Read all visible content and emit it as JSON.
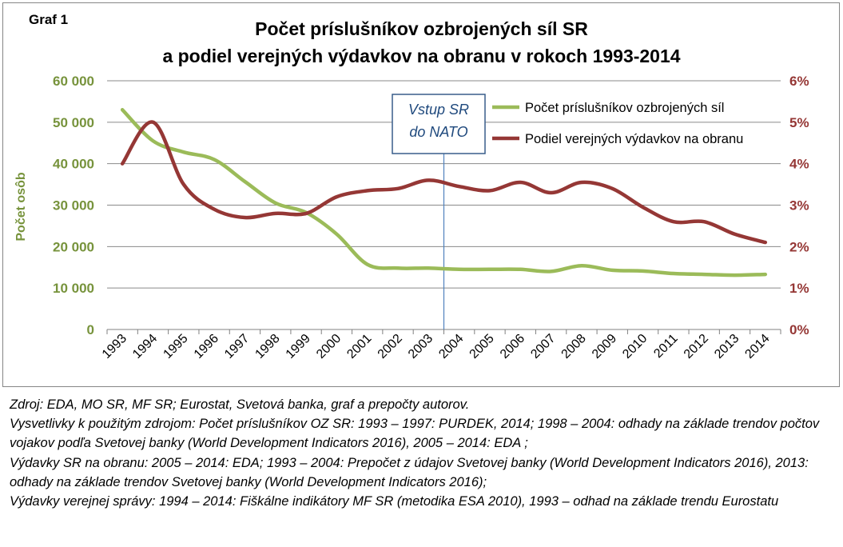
{
  "graph_label": "Graf 1",
  "title_lines": [
    "Počet príslušníkov ozbrojených síl SR",
    "a podiel verejných výdavkov na obranu v rokoch 1993-2014"
  ],
  "annotation": {
    "lines": [
      "Vstup SR",
      "do NATO"
    ],
    "x_year": 2003.5
  },
  "colors": {
    "series_green": "#9BBB59",
    "series_red": "#953735",
    "axis_left_text": "#77933C",
    "axis_right_text": "#953735",
    "annotation_line": "#4F81BD",
    "annotation_border": "#385D8A",
    "annotation_text": "#1F497D",
    "grid": "#8a8a8a"
  },
  "chart_data": {
    "type": "line",
    "title": "Počet príslušníkov ozbrojených síl SR a podiel verejných výdavkov na obranu v rokoch 1993-2014",
    "categories": [
      "1993",
      "1994",
      "1995",
      "1996",
      "1997",
      "1998",
      "1999",
      "2000",
      "2001",
      "2002",
      "2003",
      "2004",
      "2005",
      "2006",
      "2007",
      "2008",
      "2009",
      "2010",
      "2011",
      "2012",
      "2013",
      "2014"
    ],
    "ylabel_left": "Počet osôb",
    "ylabel_right": "",
    "ylim_left": [
      0,
      60000
    ],
    "ylim_right": [
      0,
      6
    ],
    "yticks_left": [
      "0",
      "10 000",
      "20 000",
      "30 000",
      "40 000",
      "50 000",
      "60 000"
    ],
    "yticks_right": [
      "0%",
      "1%",
      "2%",
      "3%",
      "4%",
      "5%",
      "6%"
    ],
    "grid": true,
    "legend_position": "top-right, inside plot",
    "series": [
      {
        "name": "Počet príslušníkov ozbrojených síl",
        "axis": "left",
        "values": [
          53000,
          45500,
          42800,
          41000,
          35700,
          30500,
          28200,
          23000,
          15700,
          14800,
          14800,
          14500,
          14500,
          14500,
          14000,
          15400,
          14300,
          14100,
          13500,
          13300,
          13100,
          13300
        ]
      },
      {
        "name": "Podiel verejných výdavkov na obranu",
        "axis": "right",
        "values": [
          4.0,
          5.0,
          3.5,
          2.9,
          2.7,
          2.8,
          2.8,
          3.2,
          3.35,
          3.4,
          3.6,
          3.45,
          3.35,
          3.55,
          3.3,
          3.55,
          3.4,
          2.95,
          2.6,
          2.6,
          2.3,
          2.1
        ]
      }
    ]
  },
  "notes": [
    "Zdroj: EDA, MO SR, MF SR; Eurostat, Svetová banka, graf a prepočty autorov.",
    "Vysvetlivky k použitým zdrojom: Počet príslušníkov OZ SR: 1993 – 1997: PURDEK, 2014;  1998 – 2004: odhady na základe trendov počtov vojakov podľa Svetovej banky (World Development Indicators 2016), 2005 – 2014: EDA ;",
    "Výdavky SR na obranu: 2005 – 2014: EDA; 1993 – 2004: Prepočet z údajov Svetovej banky (World Development Indicators 2016), 2013: odhady na základe trendov Svetovej banky (World Development Indicators 2016);",
    "Výdavky verejnej správy: 1994 – 2014: Fiškálne indikátory MF SR (metodika ESA 2010), 1993 – odhad na základe trendu Eurostatu"
  ]
}
